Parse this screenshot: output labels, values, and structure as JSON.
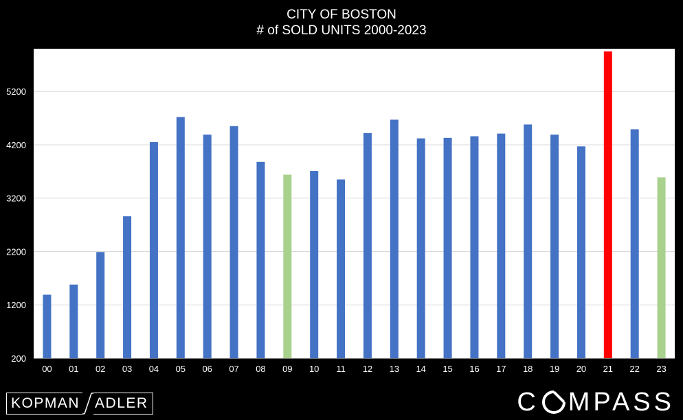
{
  "chart_data": {
    "type": "bar",
    "title": "CITY OF BOSTON",
    "subtitle": "# of SOLD UNITS 2000-2023",
    "categories": [
      "00",
      "01",
      "02",
      "03",
      "04",
      "05",
      "06",
      "07",
      "08",
      "09",
      "10",
      "11",
      "12",
      "13",
      "14",
      "15",
      "16",
      "17",
      "18",
      "19",
      "20",
      "21",
      "22",
      "23"
    ],
    "values": [
      1390,
      1580,
      2190,
      2860,
      4250,
      4720,
      4390,
      4550,
      3880,
      3640,
      3710,
      3550,
      4420,
      4670,
      4320,
      4330,
      4360,
      4410,
      4580,
      4390,
      4170,
      5950,
      4490,
      3590
    ],
    "bar_colors": [
      "#4472C4",
      "#4472C4",
      "#4472C4",
      "#4472C4",
      "#4472C4",
      "#4472C4",
      "#4472C4",
      "#4472C4",
      "#4472C4",
      "#A9D18E",
      "#4472C4",
      "#4472C4",
      "#4472C4",
      "#4472C4",
      "#4472C4",
      "#4472C4",
      "#4472C4",
      "#4472C4",
      "#4472C4",
      "#4472C4",
      "#4472C4",
      "#FF0000",
      "#4472C4",
      "#A9D18E"
    ],
    "yticks": [
      200,
      1200,
      2200,
      3200,
      4200,
      5200
    ],
    "ylim": [
      200,
      6000
    ],
    "grid": true,
    "xlabel": "",
    "ylabel": "",
    "plot_background": "#FFFFFF",
    "page_background": "#000000"
  },
  "branding": {
    "left_logo_part1": "KOPMAN",
    "left_logo_part2": "ADLER",
    "right_logo_part1": "C",
    "right_logo_part2": "MPASS"
  }
}
